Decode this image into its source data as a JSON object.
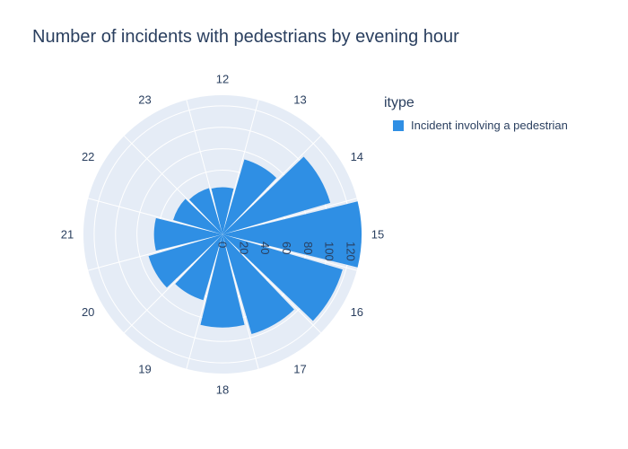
{
  "chart_data": {
    "type": "bar",
    "polar": true,
    "title": "Number of incidents with pedestrians by evening hour",
    "categories": [
      "12",
      "13",
      "14",
      "15",
      "16",
      "17",
      "18",
      "19",
      "20",
      "21",
      "22",
      "23"
    ],
    "series": [
      {
        "name": "Incident involving a pedestrian",
        "values": [
          44,
          73,
          105,
          130,
          117,
          97,
          87,
          64,
          72,
          64,
          48,
          45
        ]
      }
    ],
    "radial_ticks": [
      "0",
      "20",
      "40",
      "60",
      "80",
      "100",
      "120"
    ],
    "radial_range": [
      0,
      130
    ],
    "legend_title": "itype",
    "legend_position": "right",
    "colors": {
      "bar": "#2f8fe4",
      "plot_bg": "#e5ecf6",
      "grid": "#ffffff",
      "text": "#2a3f5f"
    }
  }
}
